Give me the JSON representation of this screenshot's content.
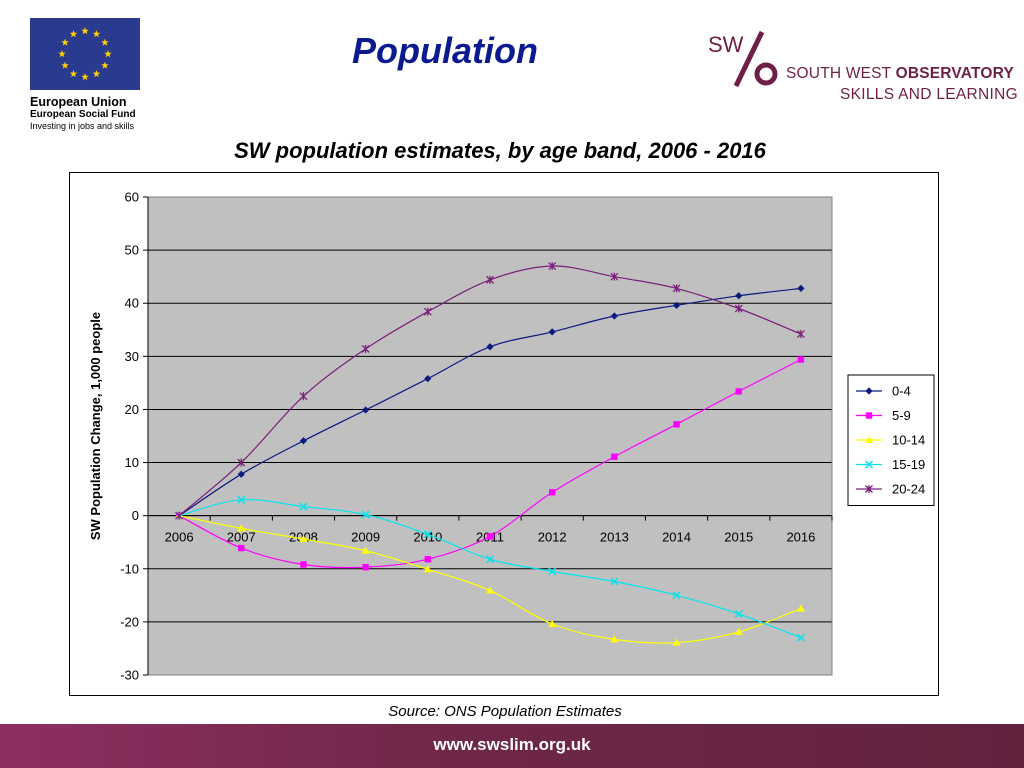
{
  "header": {
    "page_title": "Population",
    "eu": {
      "name": "European Union",
      "fund": "European Social Fund",
      "tagline": "Investing in jobs and skills",
      "flag_color": "#2a3a8f",
      "star_color": "#ffd200"
    },
    "swo": {
      "monogram": "SW",
      "line1_regular": "SOUTH WEST ",
      "line1_bold": "OBSERVATORY",
      "line2": "SKILLS AND LEARNING",
      "brand_color": "#6e1f45"
    }
  },
  "chart_data": {
    "type": "line",
    "title": "SW population estimates, by age band, 2006 - 2016",
    "xlabel": "",
    "ylabel": "SW Population Change, 1,000 people",
    "ylim": [
      -30,
      60
    ],
    "yticks": [
      60,
      50,
      40,
      30,
      20,
      10,
      0,
      -10,
      -20,
      -30
    ],
    "grid": true,
    "plot_background": "#c0c0c0",
    "legend_position": "right",
    "categories": [
      "2006",
      "2007",
      "2008",
      "2009",
      "2010",
      "2011",
      "2012",
      "2013",
      "2014",
      "2015",
      "2016"
    ],
    "series": [
      {
        "name": "0-4",
        "color": "#0a1a80",
        "marker": "diamond",
        "values": [
          0,
          7.8,
          14.1,
          19.9,
          25.8,
          31.8,
          34.6,
          37.6,
          39.6,
          41.4,
          42.8
        ]
      },
      {
        "name": "5-9",
        "color": "#ff00ff",
        "marker": "square",
        "values": [
          0,
          -6.1,
          -9.2,
          -9.7,
          -8.2,
          -3.9,
          4.4,
          11.1,
          17.2,
          23.4,
          29.4
        ]
      },
      {
        "name": "10-14",
        "color": "#ffff00",
        "marker": "triangle",
        "values": [
          0,
          -2.4,
          -4.4,
          -6.6,
          -10.1,
          -14.1,
          -20.4,
          -23.3,
          -23.9,
          -21.9,
          -17.5
        ]
      },
      {
        "name": "15-19",
        "color": "#00e5ee",
        "marker": "x",
        "values": [
          0,
          3.0,
          1.7,
          0.2,
          -3.5,
          -8.2,
          -10.5,
          -12.4,
          -15.0,
          -18.5,
          -23.0
        ]
      },
      {
        "name": "20-24",
        "color": "#7a1f7a",
        "marker": "asterisk",
        "values": [
          0,
          10.0,
          22.5,
          31.4,
          38.4,
          44.4,
          47.0,
          45.0,
          42.8,
          39.0,
          34.2
        ]
      }
    ]
  },
  "source_note": "Source: ONS Population Estimates",
  "footer": {
    "url": "www.swslim.org.uk"
  }
}
